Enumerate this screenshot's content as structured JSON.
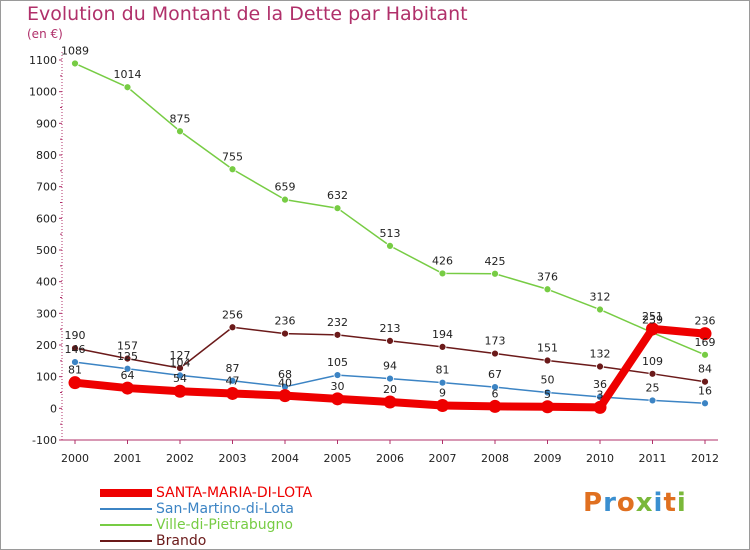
{
  "title": "Evolution du Montant de la Dette par Habitant",
  "unit_label": "(en €)",
  "logo_text": "Proxiti",
  "colors": {
    "title": "#b0306a",
    "axis": "#b0306a",
    "logo_letters": [
      "#e07020",
      "#3a8fd0",
      "#e07020",
      "#7ab83a",
      "#3a8fd0",
      "#e07020",
      "#7ab83a"
    ]
  },
  "chart_data": {
    "type": "line",
    "title": "Evolution du Montant de la Dette par Habitant",
    "ylabel": "(en €)",
    "xlabel": "",
    "ylim": [
      -100,
      1100
    ],
    "yticks": [
      -100,
      0,
      100,
      200,
      300,
      400,
      500,
      600,
      700,
      800,
      900,
      1000,
      1100
    ],
    "x": [
      "2000",
      "2001",
      "2002",
      "2003",
      "2004",
      "2005",
      "2006",
      "2007",
      "2008",
      "2009",
      "2010",
      "2011",
      "2012"
    ],
    "grid": false,
    "legend_position": "bottom-left",
    "series": [
      {
        "name": "SANTA-MARIA-DI-LOTA",
        "color": "#ee0000",
        "values": [
          81,
          64,
          54,
          47,
          40,
          30,
          20,
          9,
          6,
          5,
          3,
          251,
          236
        ]
      },
      {
        "name": "San-Martino-di-Lota",
        "color": "#3c84c4",
        "values": [
          146,
          125,
          104,
          87,
          68,
          105,
          94,
          81,
          67,
          50,
          36,
          25,
          16
        ]
      },
      {
        "name": "Ville-di-Pietrabugno",
        "color": "#77cc44",
        "values": [
          1089,
          1014,
          875,
          755,
          659,
          632,
          513,
          426,
          425,
          376,
          312,
          239,
          169
        ]
      },
      {
        "name": "Brando",
        "color": "#6b1a1a",
        "values": [
          190,
          157,
          127,
          256,
          236,
          232,
          213,
          194,
          173,
          151,
          132,
          109,
          84
        ]
      }
    ]
  }
}
